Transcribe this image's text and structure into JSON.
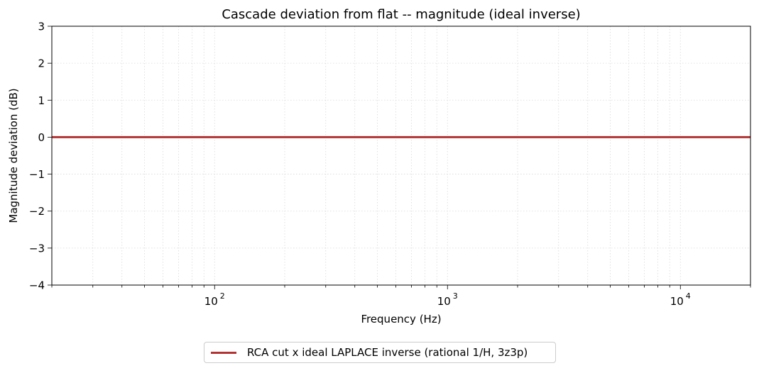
{
  "chart_data": {
    "type": "line",
    "title": "Cascade deviation from flat -- magnitude (ideal inverse)",
    "xlabel": "Frequency (Hz)",
    "ylabel": "Magnitude deviation (dB)",
    "xscale": "log",
    "xlim": [
      20,
      20000
    ],
    "ylim": [
      -4,
      3
    ],
    "yticks": [
      3,
      2,
      1,
      0,
      -1,
      -2,
      -3,
      -4
    ],
    "ytick_labels": [
      "3",
      "2",
      "1",
      "0",
      "−1",
      "−2",
      "−3",
      "−4"
    ],
    "xticks": [
      100,
      1000,
      10000
    ],
    "xtick_base": "10",
    "xtick_exponents": [
      "2",
      "3",
      "4"
    ],
    "grid": true,
    "legend_position": "bottom-center, outside plot",
    "series": [
      {
        "name": "RCA cut x ideal LAPLACE inverse (rational 1/H, 3z3p)",
        "color": "#b33333",
        "x": [
          20,
          100,
          1000,
          10000,
          20000
        ],
        "y": [
          0,
          0,
          0,
          0,
          0
        ]
      }
    ]
  }
}
